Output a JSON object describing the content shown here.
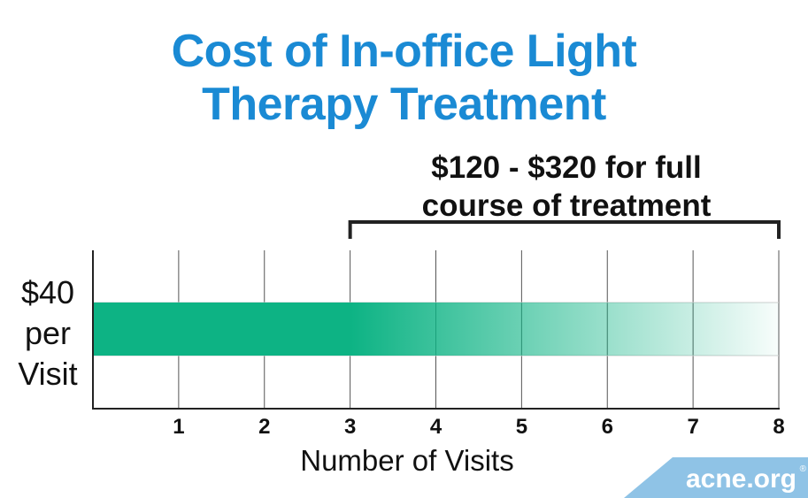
{
  "chart_data": {
    "type": "bar",
    "title": [
      "Cost of In-office Light",
      "Therapy Treatment"
    ],
    "annotation": {
      "lines": [
        "$120 - $320 for full",
        "course of treatment"
      ],
      "from": 3,
      "to": 8
    },
    "ylabel": [
      "$40",
      "per",
      "Visit"
    ],
    "xlabel": "Number of Visits",
    "x_ticks": [
      1,
      2,
      3,
      4,
      5,
      6,
      7,
      8
    ],
    "xlim": [
      0,
      8
    ],
    "grid": true,
    "bar": {
      "label": "$40 per Visit",
      "solid_until": 3,
      "fade_until": 8
    },
    "colors": {
      "title": "#1a8ad4",
      "bar": "#0db384",
      "grid": "#555555",
      "badge": "#8fc3e6"
    }
  },
  "logo": {
    "text": "acne.org",
    "mark": "®"
  }
}
